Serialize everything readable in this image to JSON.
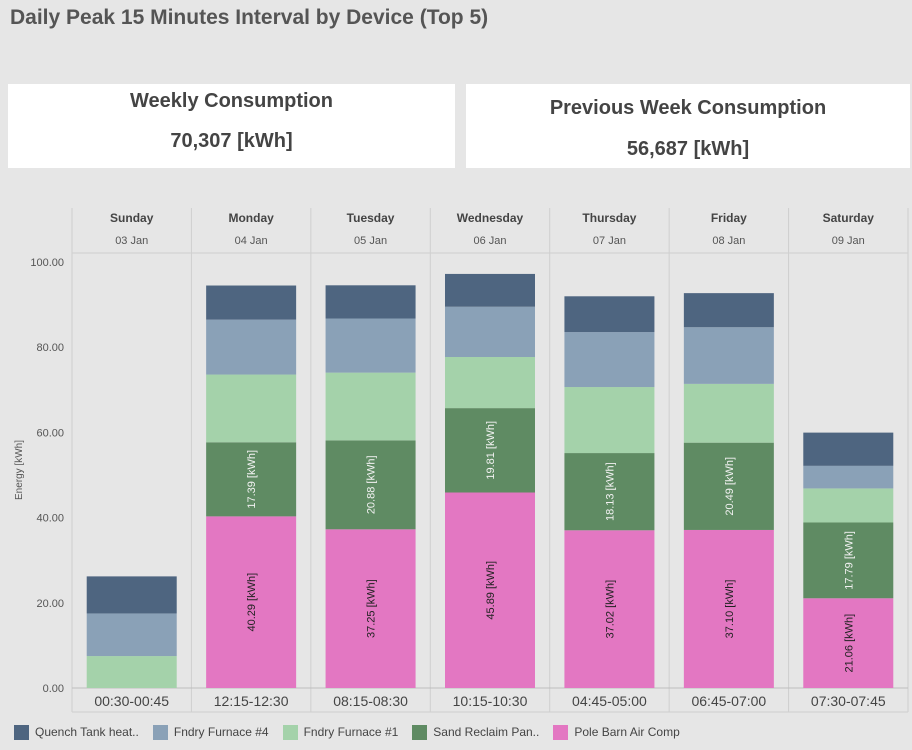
{
  "page": {
    "title": "Daily Peak 15 Minutes Interval by Device (Top 5)"
  },
  "kpis": {
    "weekly": {
      "label": "Weekly Consumption",
      "value": "70,307 [kWh]"
    },
    "previous": {
      "label": "Previous Week Consumption",
      "value": "56,687 [kWh]"
    }
  },
  "chart_data": {
    "type": "bar",
    "stacked": true,
    "ylabel": "Energy [kWh]",
    "ylim": [
      0,
      100
    ],
    "yticks": [
      "0.00",
      "20.00",
      "40.00",
      "60.00",
      "80.00",
      "100.00"
    ],
    "grid": false,
    "legend_position": "bottom",
    "days": [
      {
        "day": "Sunday",
        "date": "03 Jan",
        "interval": "00:30-00:45"
      },
      {
        "day": "Monday",
        "date": "04 Jan",
        "interval": "12:15-12:30"
      },
      {
        "day": "Tuesday",
        "date": "05 Jan",
        "interval": "08:15-08:30"
      },
      {
        "day": "Wednesday",
        "date": "06 Jan",
        "interval": "10:15-10:30"
      },
      {
        "day": "Thursday",
        "date": "07 Jan",
        "interval": "04:45-05:00"
      },
      {
        "day": "Friday",
        "date": "08 Jan",
        "interval": "06:45-07:00"
      },
      {
        "day": "Saturday",
        "date": "09 Jan",
        "interval": "07:30-07:45"
      }
    ],
    "series": [
      {
        "name": "Pole Barn Air Comp",
        "color": "#e377c2",
        "values": [
          0,
          40.29,
          37.25,
          45.89,
          37.02,
          37.1,
          21.06
        ],
        "labels": [
          "",
          "40.29 [kWh]",
          "37.25 [kWh]",
          "45.89 [kWh]",
          "37.02 [kWh]",
          "37.10 [kWh]",
          "21.06 [kWh]"
        ]
      },
      {
        "name": "Sand Reclaim Pan..",
        "color": "#5f8b63",
        "values": [
          0,
          17.39,
          20.88,
          19.81,
          18.13,
          20.49,
          17.79
        ],
        "labels": [
          "",
          "17.39 [kWh]",
          "20.88 [kWh]",
          "19.81 [kWh]",
          "18.13 [kWh]",
          "20.49 [kWh]",
          "17.79 [kWh]"
        ]
      },
      {
        "name": "Fndry Furnace #1",
        "color": "#a4d2aa",
        "values": [
          7.5,
          15.9,
          15.9,
          12.0,
          15.5,
          13.8,
          8.0
        ],
        "labels": [
          "",
          "",
          "",
          "",
          "",
          "",
          ""
        ]
      },
      {
        "name": "Fndry Furnace #4",
        "color": "#8aa1b7",
        "values": [
          10.0,
          12.9,
          12.7,
          11.8,
          12.9,
          13.3,
          5.3
        ],
        "labels": [
          "",
          "",
          "",
          "",
          "",
          "",
          ""
        ]
      },
      {
        "name": "Quench Tank heat..",
        "color": "#4e6580",
        "values": [
          8.7,
          8.0,
          7.8,
          7.7,
          8.4,
          8.0,
          7.8
        ],
        "labels": [
          "",
          "",
          "",
          "",
          "",
          "",
          ""
        ]
      }
    ],
    "legend_order": [
      "Quench Tank heat..",
      "Fndry Furnace #4",
      "Fndry Furnace #1",
      "Sand Reclaim Pan..",
      "Pole Barn Air Comp"
    ]
  }
}
